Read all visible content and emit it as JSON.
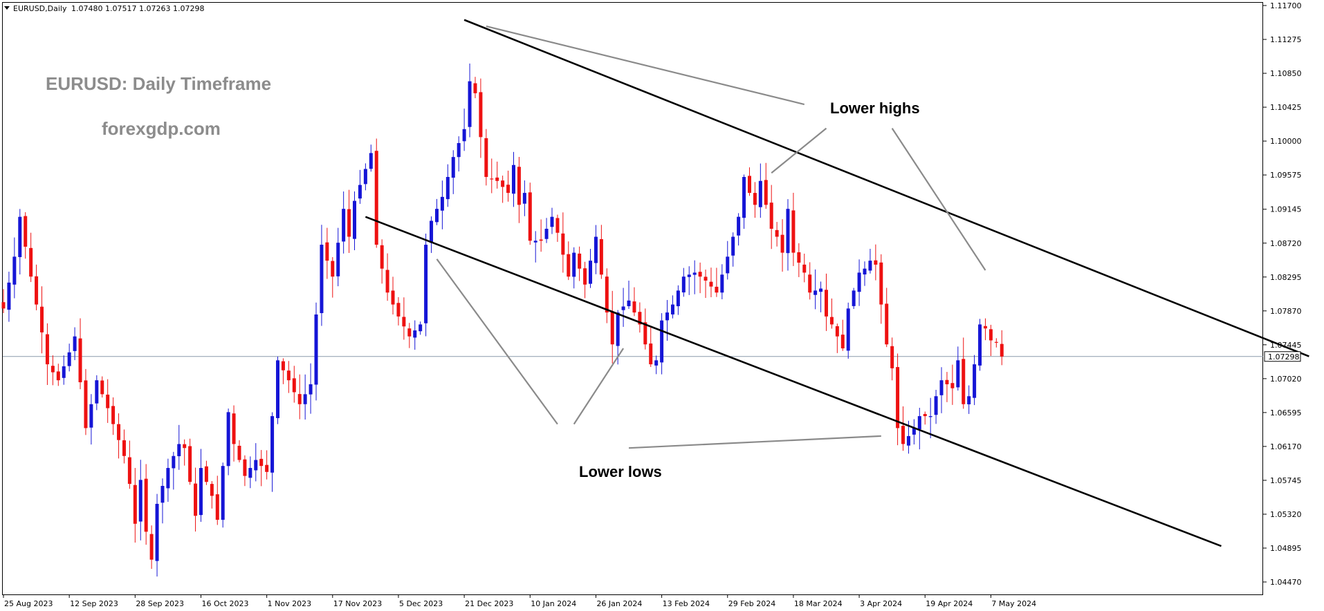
{
  "header": {
    "symbol": "EURUSD,Daily",
    "ohlc": "1.07480 1.07517 1.07263 1.07298"
  },
  "watermark": {
    "title": "EURUSD: Daily Timeframe",
    "site": "forexgdp.com"
  },
  "annotations": {
    "lower_highs": "Lower highs",
    "lower_lows": "Lower lows"
  },
  "colors": {
    "bull": "#1515d6",
    "bear": "#ee1111",
    "trendline": "#000000",
    "pointer": "#8a8a8a",
    "price_line": "#8a9aaa"
  },
  "chart_data": {
    "type": "candlestick",
    "instrument": "EURUSD",
    "timeframe": "Daily",
    "current_price": 1.07298,
    "y_ticks": [
      1.117,
      1.11275,
      1.1085,
      1.10425,
      1.1,
      1.09575,
      1.09145,
      1.0872,
      1.08295,
      1.0787,
      1.07445,
      1.0702,
      1.06595,
      1.0617,
      1.05745,
      1.0532,
      1.04895,
      1.0447
    ],
    "y_tick_labels": [
      "1.11700",
      "1.11275",
      "1.10850",
      "1.10425",
      "1.10000",
      "1.09575",
      "1.09145",
      "1.08720",
      "1.08295",
      "1.07870",
      "1.07445",
      "1.07020",
      "1.06595",
      "1.06170",
      "1.05745",
      "1.05320",
      "1.04895",
      "1.04470"
    ],
    "x_ticks": [
      {
        "label": "25 Aug 2023",
        "bar": 0
      },
      {
        "label": "12 Sep 2023",
        "bar": 12
      },
      {
        "label": "28 Sep 2023",
        "bar": 24
      },
      {
        "label": "16 Oct 2023",
        "bar": 36
      },
      {
        "label": "1 Nov 2023",
        "bar": 48
      },
      {
        "label": "17 Nov 2023",
        "bar": 60
      },
      {
        "label": "5 Dec 2023",
        "bar": 72
      },
      {
        "label": "21 Dec 2023",
        "bar": 84
      },
      {
        "label": "10 Jan 2024",
        "bar": 96
      },
      {
        "label": "26 Jan 2024",
        "bar": 108
      },
      {
        "label": "13 Feb 2024",
        "bar": 120
      },
      {
        "label": "29 Feb 2024",
        "bar": 132
      },
      {
        "label": "18 Mar 2024",
        "bar": 144
      },
      {
        "label": "3 Apr 2024",
        "bar": 156
      },
      {
        "label": "19 Apr 2024",
        "bar": 168
      },
      {
        "label": "7 May 2024",
        "bar": 180
      }
    ],
    "close_path": [
      [
        0,
        1.079
      ],
      [
        2,
        1.0855
      ],
      [
        3,
        1.0905
      ],
      [
        5,
        1.083
      ],
      [
        7,
        1.076
      ],
      [
        8,
        1.072
      ],
      [
        10,
        1.07
      ],
      [
        12,
        1.0735
      ],
      [
        13,
        1.0755
      ],
      [
        15,
        1.064
      ],
      [
        17,
        1.07
      ],
      [
        19,
        1.0665
      ],
      [
        22,
        1.0605
      ],
      [
        23,
        1.057
      ],
      [
        24,
        1.052
      ],
      [
        25,
        1.0575
      ],
      [
        26,
        1.051
      ],
      [
        27,
        1.0475
      ],
      [
        28,
        1.0545
      ],
      [
        30,
        1.059
      ],
      [
        32,
        1.062
      ],
      [
        33,
        1.0615
      ],
      [
        35,
        1.053
      ],
      [
        36,
        1.059
      ],
      [
        38,
        1.0555
      ],
      [
        39,
        1.0525
      ],
      [
        41,
        1.066
      ],
      [
        42,
        1.062
      ],
      [
        44,
        1.058
      ],
      [
        46,
        1.06
      ],
      [
        48,
        1.0585
      ],
      [
        50,
        1.0725
      ],
      [
        52,
        1.07
      ],
      [
        54,
        1.067
      ],
      [
        56,
        1.0695
      ],
      [
        58,
        1.087
      ],
      [
        60,
        1.083
      ],
      [
        62,
        1.0915
      ],
      [
        63,
        1.088
      ],
      [
        64,
        1.0925
      ],
      [
        66,
        1.0965
      ],
      [
        67,
        1.0985
      ],
      [
        68,
        1.087
      ],
      [
        70,
        1.081
      ],
      [
        72,
        1.078
      ],
      [
        74,
        1.0755
      ],
      [
        76,
        1.077
      ],
      [
        77,
        1.087
      ],
      [
        78,
        1.09
      ],
      [
        80,
        1.093
      ],
      [
        82,
        1.098
      ],
      [
        84,
        1.1015
      ],
      [
        85,
        1.1075
      ],
      [
        86,
        1.106
      ],
      [
        87,
        1.1005
      ],
      [
        88,
        1.0955
      ],
      [
        90,
        1.095
      ],
      [
        92,
        1.0935
      ],
      [
        93,
        1.097
      ],
      [
        94,
        1.092
      ],
      [
        95,
        1.0935
      ],
      [
        96,
        1.0875
      ],
      [
        98,
        1.0875
      ],
      [
        100,
        1.0905
      ],
      [
        101,
        1.0885
      ],
      [
        103,
        1.083
      ],
      [
        104,
        1.086
      ],
      [
        106,
        1.082
      ],
      [
        108,
        1.088
      ],
      [
        110,
        1.0785
      ],
      [
        111,
        1.0745
      ],
      [
        112,
        1.0785
      ],
      [
        114,
        1.08
      ],
      [
        116,
        1.077
      ],
      [
        118,
        1.072
      ],
      [
        119,
        1.0725
      ],
      [
        120,
        1.0775
      ],
      [
        122,
        1.0795
      ],
      [
        124,
        1.083
      ],
      [
        126,
        1.0835
      ],
      [
        128,
        1.0825
      ],
      [
        130,
        1.081
      ],
      [
        132,
        1.0855
      ],
      [
        134,
        1.0905
      ],
      [
        135,
        1.0955
      ],
      [
        136,
        1.0935
      ],
      [
        137,
        1.092
      ],
      [
        138,
        1.095
      ],
      [
        140,
        1.089
      ],
      [
        141,
        1.088
      ],
      [
        142,
        1.086
      ],
      [
        143,
        1.0915
      ],
      [
        144,
        1.086
      ],
      [
        146,
        1.0835
      ],
      [
        147,
        1.081
      ],
      [
        149,
        1.0815
      ],
      [
        150,
        1.078
      ],
      [
        151,
        1.077
      ],
      [
        153,
        1.074
      ],
      [
        154,
        1.079
      ],
      [
        156,
        1.0835
      ],
      [
        157,
        1.084
      ],
      [
        158,
        1.085
      ],
      [
        159,
        1.0845
      ],
      [
        161,
        1.0745
      ],
      [
        162,
        1.0715
      ],
      [
        163,
        1.064
      ],
      [
        164,
        1.062
      ],
      [
        166,
        1.064
      ],
      [
        167,
        1.0655
      ],
      [
        169,
        1.0655
      ],
      [
        170,
        1.068
      ],
      [
        171,
        1.07
      ],
      [
        173,
        1.069
      ],
      [
        174,
        1.0725
      ],
      [
        175,
        1.067
      ],
      [
        176,
        1.068
      ],
      [
        177,
        1.072
      ],
      [
        178,
        1.077
      ],
      [
        179,
        1.0765
      ],
      [
        180,
        1.075
      ],
      [
        181,
        1.0748
      ],
      [
        182,
        1.07298
      ]
    ],
    "lines": [
      {
        "name": "upper-channel",
        "x1": 84,
        "y1": 1.1152,
        "x2": 238,
        "y2": 1.073
      },
      {
        "name": "lower-channel",
        "x1": 66,
        "y1": 1.0905,
        "x2": 222,
        "y2": 1.0492
      }
    ],
    "pointers": [
      {
        "from": [
          88,
          1.1144
        ],
        "to": [
          146,
          1.1046
        ]
      },
      {
        "from": [
          150,
          1.1016
        ],
        "to": [
          140,
          1.096
        ]
      },
      {
        "from": [
          162,
          1.1016
        ],
        "to": [
          179,
          1.0838
        ]
      },
      {
        "from": [
          101,
          1.0645
        ],
        "to": [
          79,
          1.0852
        ]
      },
      {
        "from": [
          104,
          1.0645
        ],
        "to": [
          113,
          1.074
        ]
      },
      {
        "from": [
          114,
          1.0615
        ],
        "to": [
          160,
          1.063
        ]
      }
    ]
  }
}
